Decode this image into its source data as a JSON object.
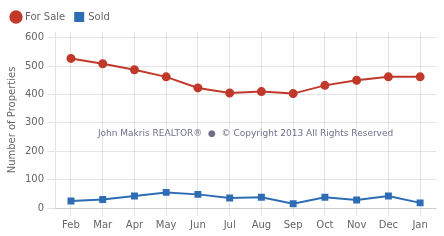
{
  "chart_data": {
    "type": "line",
    "categories": [
      "Feb",
      "Mar",
      "Apr",
      "May",
      "Jun",
      "Jul",
      "Aug",
      "Sep",
      "Oct",
      "Nov",
      "Dec",
      "Jan"
    ],
    "series": [
      {
        "name": "For Sale",
        "color": "#c0392b",
        "marker": "circle",
        "values": [
          527,
          508,
          487,
          462,
          423,
          405,
          410,
          403,
          432,
          450,
          462,
          462
        ]
      },
      {
        "name": "Sold",
        "color": "#2e6db4",
        "marker": "square",
        "values": [
          25,
          30,
          42,
          55,
          48,
          35,
          38,
          15,
          38,
          28,
          42,
          18
        ]
      }
    ],
    "ylabel": "Number of Properties",
    "ylim": [
      0,
      620
    ],
    "yticks": [
      0,
      100,
      200,
      300,
      400,
      500,
      600
    ],
    "grid": true,
    "legend": "upper left",
    "annotation": "John Makris REALTOR®  ●  © Copyright 2013 All Rights Reserved"
  }
}
